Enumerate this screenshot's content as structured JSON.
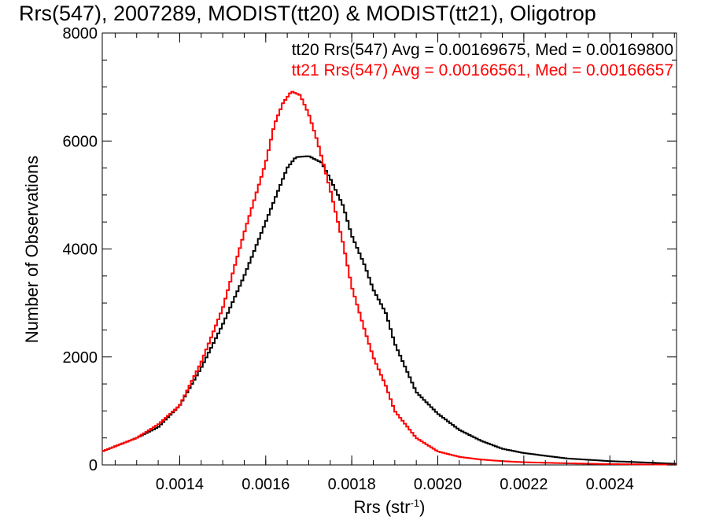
{
  "chart_data": {
    "type": "line",
    "title": "Rrs(547), 2007289, MODIST(tt20) & MODIST(tt21), Oligotrop",
    "xlabel": "Rrs (str",
    "xlabel_sup": "-1",
    "xlabel_end": ")",
    "ylabel": "Number of Observations",
    "xlim": [
      0.00122,
      0.002555
    ],
    "ylim": [
      0,
      8000
    ],
    "xticks": [
      0.0014,
      0.0016,
      0.0018,
      0.002,
      0.0022,
      0.0024
    ],
    "xtick_labels": [
      "0.0014",
      "0.0016",
      "0.0018",
      "0.0020",
      "0.0022",
      "0.0024"
    ],
    "yticks": [
      0,
      2000,
      4000,
      6000,
      8000
    ],
    "ytick_labels": [
      "0",
      "2000",
      "4000",
      "6000",
      "8000"
    ],
    "annotations": [
      {
        "text": "tt20 Rrs(547) Avg = 0.00169675, Med = 0.00169800",
        "color": "#000000"
      },
      {
        "text": "tt21 Rrs(547) Avg = 0.00166561, Med = 0.00166657",
        "color": "#ff0000"
      }
    ],
    "series": [
      {
        "color": "#000000",
        "x": [
          0.00122,
          0.0013,
          0.00135,
          0.0014,
          0.00145,
          0.0015,
          0.00155,
          0.0016,
          0.00163,
          0.00165,
          0.00167,
          0.0017,
          0.00173,
          0.00175,
          0.00178,
          0.0018,
          0.00183,
          0.00185,
          0.00188,
          0.0019,
          0.00195,
          0.002,
          0.00205,
          0.0021,
          0.00215,
          0.0022,
          0.0023,
          0.0024,
          0.0025,
          0.002555
        ],
        "y": [
          250,
          500,
          700,
          1100,
          1800,
          2600,
          3500,
          4500,
          5100,
          5500,
          5700,
          5720,
          5600,
          5300,
          4800,
          4250,
          3700,
          3250,
          2800,
          2250,
          1350,
          950,
          650,
          450,
          300,
          220,
          120,
          70,
          40,
          20
        ]
      },
      {
        "color": "#ff0000",
        "x": [
          0.00122,
          0.0013,
          0.00135,
          0.0014,
          0.00145,
          0.0015,
          0.00155,
          0.0016,
          0.00162,
          0.00164,
          0.00166,
          0.00168,
          0.0017,
          0.00172,
          0.00175,
          0.00178,
          0.0018,
          0.00183,
          0.00185,
          0.00188,
          0.0019,
          0.00195,
          0.002,
          0.00205,
          0.0021,
          0.00215,
          0.0022,
          0.0023,
          0.0024,
          0.0025,
          0.002555
        ],
        "y": [
          250,
          500,
          750,
          1100,
          1900,
          2900,
          4300,
          5600,
          6300,
          6700,
          6920,
          6850,
          6500,
          6000,
          5100,
          4100,
          3300,
          2500,
          2000,
          1450,
          1000,
          500,
          250,
          150,
          100,
          70,
          50,
          30,
          15,
          8,
          5
        ]
      }
    ]
  }
}
